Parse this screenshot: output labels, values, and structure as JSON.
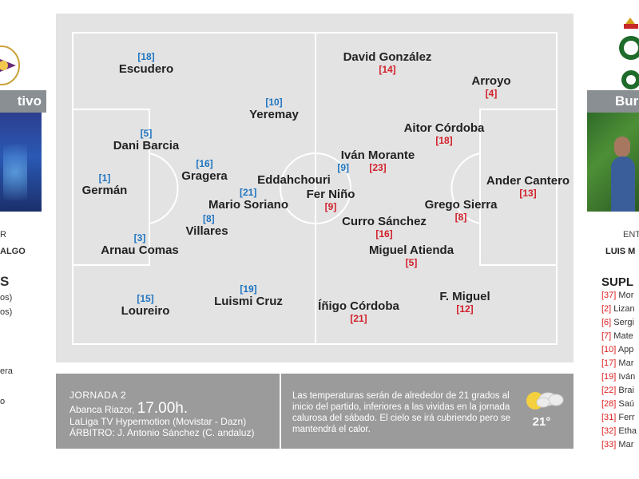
{
  "left_team": {
    "banner": "tivo",
    "coach_label": "R",
    "coach_name": "ALGO",
    "subs_title": "S",
    "lines": [
      "os)",
      "os)",
      "era",
      "o"
    ]
  },
  "right_team": {
    "banner": "Bur",
    "coach_label": "ENT",
    "coach_name": "LUIS M",
    "subs_title": "SUPL",
    "subs": [
      {
        "num": "[37]",
        "name": "Mor"
      },
      {
        "num": "[2]",
        "name": "Lizan"
      },
      {
        "num": "[6]",
        "name": "Sergi"
      },
      {
        "num": "[7]",
        "name": "Mate"
      },
      {
        "num": "[10]",
        "name": "App"
      },
      {
        "num": "[17]",
        "name": "Mar"
      },
      {
        "num": "[19]",
        "name": "Iván"
      },
      {
        "num": "[22]",
        "name": "Brai"
      },
      {
        "num": "[28]",
        "name": "Saú"
      },
      {
        "num": "[31]",
        "name": "Ferr"
      },
      {
        "num": "[32]",
        "name": "Etha"
      },
      {
        "num": "[33]",
        "name": "Mar"
      }
    ]
  },
  "home_players": [
    {
      "number": "[18]",
      "name": "Escudero"
    },
    {
      "number": "[10]",
      "name": "Yeremay"
    },
    {
      "number": "[5]",
      "name": "Dani Barcia"
    },
    {
      "number": "[16]",
      "name": "Gragera"
    },
    {
      "number": "[1]",
      "name": "Germán"
    },
    {
      "number": "[9]",
      "name": "Eddahchouri"
    },
    {
      "number": "[21]",
      "name": "Mario Soriano"
    },
    {
      "number": "[8]",
      "name": "Villares"
    },
    {
      "number": "[3]",
      "name": "Arnau Comas"
    },
    {
      "number": "[15]",
      "name": "Loureiro"
    },
    {
      "number": "[19]",
      "name": "Luismi Cruz"
    }
  ],
  "away_players": [
    {
      "name": "David González",
      "number": "[14]"
    },
    {
      "name": "Arroyo",
      "number": "[4]"
    },
    {
      "name": "Aitor Córdoba",
      "number": "[18]"
    },
    {
      "name": "Iván Morante",
      "number": "[23]"
    },
    {
      "name": "Ander Cantero",
      "number": "[13]"
    },
    {
      "name": "Fer Niño",
      "number": "[9]"
    },
    {
      "name": "Grego Sierra",
      "number": "[8]"
    },
    {
      "name": "Curro Sánchez",
      "number": "[16]"
    },
    {
      "name": "Miguel Atienda",
      "number": "[5]"
    },
    {
      "name": "Íñigo Córdoba",
      "number": "[21]"
    },
    {
      "name": "F. Miguel",
      "number": "[12]"
    }
  ],
  "match_info": {
    "matchday": "JORNADA 2",
    "venue": "Abanca Riazor,",
    "time": "17.00h.",
    "broadcast": "LaLiga TV Hypermotion (Movistar - Dazn)",
    "referee": "ÁRBITRO: J. Antonio Sánchez (C. andaluz)"
  },
  "weather": {
    "text": "Las temperaturas serán de alrededor de 21 grados al inicio del partido, inferiores a las vividas en la jornada calurosa del sábado. El cielo se irá cubriendo pero se mantendrá el calor.",
    "temperature": "21°",
    "icon": "partly-cloudy-icon"
  },
  "colors": {
    "home_number": "#1f74c0",
    "away_number": "#d0202a",
    "pitch": "#e3e3e3",
    "info_bar": "#9b9b9b"
  }
}
